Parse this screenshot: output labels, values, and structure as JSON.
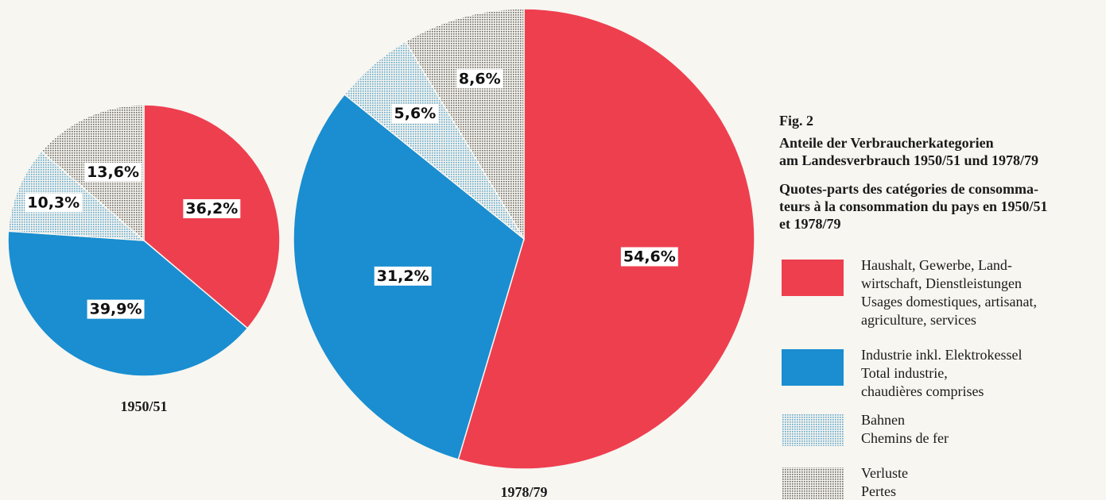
{
  "figure": {
    "label": "Fig. 2",
    "title_de": [
      "Anteile der Verbraucherkategorien",
      "am Landesverbrauch 1950/51 und 1978/79"
    ],
    "title_fr": [
      "Quotes-parts des catégories de consomma-",
      "teurs à la consommation du pays en 1950/51",
      "et 1978/79"
    ]
  },
  "legend": {
    "items": [
      {
        "lines": [
          "Haushalt, Gewerbe, Land-",
          "wirtschaft, Dienstleistungen",
          "Usages domestiques, artisanat,",
          "agriculture, services"
        ]
      },
      {
        "lines": [
          "Industrie inkl. Elektrokessel",
          "Total industrie,",
          "chaudières comprises"
        ]
      },
      {
        "lines": [
          "Bahnen",
          "Chemins de fer"
        ]
      },
      {
        "lines": [
          "Verluste",
          "Pertes"
        ]
      }
    ]
  },
  "chart_data": [
    {
      "type": "pie",
      "title": "1950/51",
      "values": [
        36.2,
        39.9,
        10.3,
        13.6
      ],
      "value_labels": [
        "36,2%",
        "39,9%",
        "10,3%",
        "13,6%"
      ],
      "colors": [
        "#ee3f4f",
        "#1a8ed0",
        "#5fa8cc",
        "#6e6863"
      ],
      "patterns": [
        false,
        false,
        true,
        true
      ]
    },
    {
      "type": "pie",
      "title": "1978/79",
      "values": [
        54.6,
        31.2,
        5.6,
        8.6
      ],
      "value_labels": [
        "54,6%",
        "31,2%",
        "5,6%",
        "8,6%"
      ],
      "colors": [
        "#ee3f4f",
        "#1a8ed0",
        "#5fa8cc",
        "#6e6863"
      ],
      "patterns": [
        false,
        false,
        true,
        true
      ]
    }
  ]
}
